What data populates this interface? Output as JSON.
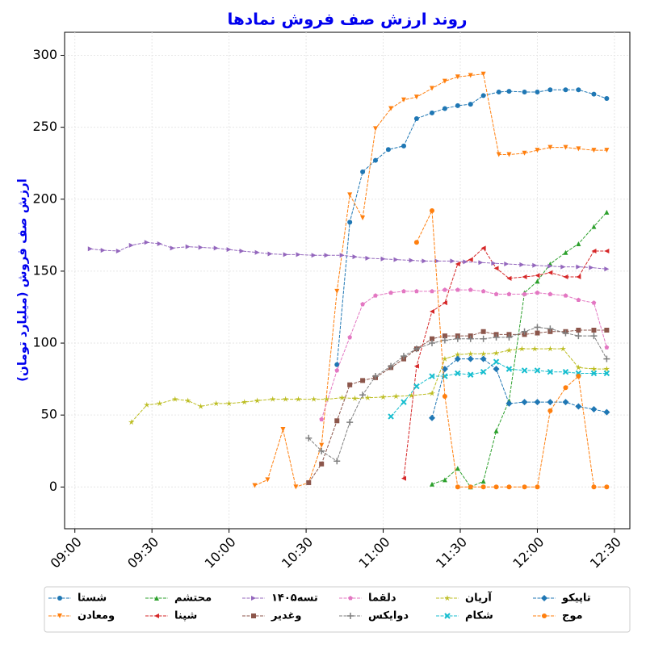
{
  "chart_data": {
    "type": "line",
    "title": "روند ارزش صف فروش نمادها",
    "y_label": "ارزش صف فروش (میلیارد تومان)",
    "xlim": [
      "08:56",
      "12:36"
    ],
    "xticks": [
      "09:00",
      "09:30",
      "10:00",
      "10:30",
      "11:00",
      "11:30",
      "12:00",
      "12:30"
    ],
    "ylim": [
      -29,
      316
    ],
    "yticks": [
      0,
      50,
      100,
      150,
      200,
      250,
      300
    ],
    "grid": true,
    "legend": "lower center",
    "series": [
      {
        "name": "شستا",
        "color": "#1f77b4",
        "marker": "o",
        "x": [
          "10:42",
          "10:47",
          "10:52",
          "10:57",
          "11:02",
          "11:08",
          "11:13",
          "11:19",
          "11:24",
          "11:29",
          "11:34",
          "11:39",
          "11:45",
          "11:49",
          "11:55",
          "12:00",
          "12:05",
          "12:11",
          "12:16",
          "12:22",
          "12:27"
        ],
        "values": [
          85,
          184,
          219,
          227,
          234.5,
          237,
          256,
          260,
          263,
          265,
          266,
          272,
          274.5,
          275,
          274.5,
          274.5,
          276,
          276,
          276,
          273,
          270
        ]
      },
      {
        "name": "ومعادن",
        "color": "#ff7f0e",
        "marker": "v",
        "x": [
          "10:10",
          "10:15",
          "10:21",
          "10:26",
          "10:31",
          "10:36",
          "10:42",
          "10:47",
          "10:52",
          "10:57",
          "11:03",
          "11:08",
          "11:13",
          "11:19",
          "11:24",
          "11:29",
          "11:34",
          "11:39",
          "11:45",
          "11:49",
          "11:55",
          "12:00",
          "12:05",
          "12:11",
          "12:16",
          "12:22",
          "12:27"
        ],
        "values": [
          1,
          5,
          40,
          0,
          3,
          29,
          136,
          203,
          187,
          249,
          263,
          269,
          271,
          277,
          282,
          285,
          286,
          287,
          231,
          231,
          232,
          234,
          236,
          236,
          235,
          234,
          234
        ]
      },
      {
        "name": "محتشم",
        "color": "#2ca02c",
        "marker": "^",
        "x": [
          "11:19",
          "11:24",
          "11:29",
          "11:34",
          "11:39",
          "11:44",
          "11:49",
          "11:55",
          "12:00",
          "12:05",
          "12:11",
          "12:16",
          "12:22",
          "12:27"
        ],
        "values": [
          2,
          5,
          13,
          0,
          4,
          39,
          60,
          135,
          143,
          155,
          163,
          169,
          181,
          191
        ]
      },
      {
        "name": "شپنا",
        "color": "#d62728",
        "marker": "<",
        "x": [
          "11:08",
          "11:13",
          "11:19",
          "11:24",
          "11:29",
          "11:34",
          "11:39",
          "11:44",
          "11:49",
          "11:55",
          "12:00",
          "12:05",
          "12:11",
          "12:16",
          "12:22",
          "12:27"
        ],
        "values": [
          6,
          84,
          122,
          128,
          155,
          158,
          166,
          152,
          145,
          146,
          147,
          149,
          146,
          146,
          164,
          164
        ]
      },
      {
        "name": "تسه۱۴۰۵",
        "color": "#9467bd",
        "marker": ">",
        "x": [
          "09:06",
          "09:11",
          "09:17",
          "09:22",
          "09:28",
          "09:33",
          "09:38",
          "09:44",
          "09:49",
          "09:55",
          "10:00",
          "10:05",
          "10:11",
          "10:16",
          "10:22",
          "10:27",
          "10:33",
          "10:38",
          "10:44",
          "10:49",
          "10:54",
          "11:00",
          "11:05",
          "11:11",
          "11:16",
          "11:21",
          "11:27",
          "11:32",
          "11:38",
          "11:43",
          "11:48",
          "11:54",
          "11:59",
          "12:05",
          "12:10",
          "12:16",
          "12:21",
          "12:27"
        ],
        "values": [
          165.5,
          164.5,
          164,
          168,
          170,
          169,
          166,
          167,
          166.5,
          166,
          165,
          164,
          163,
          162,
          161.5,
          161.5,
          161,
          161,
          161,
          160,
          159,
          158.5,
          158,
          157.5,
          157,
          157,
          157,
          156.5,
          156,
          155.5,
          155,
          154.5,
          154,
          153.5,
          153,
          153,
          152.5,
          151.5
        ]
      },
      {
        "name": "وغدیر",
        "color": "#8c564b",
        "marker": "s",
        "x": [
          "10:31",
          "10:36",
          "10:42",
          "10:47",
          "10:52",
          "10:57",
          "11:03",
          "11:08",
          "11:13",
          "11:19",
          "11:24",
          "11:29",
          "11:34",
          "11:39",
          "11:44",
          "11:49",
          "11:55",
          "12:00",
          "12:05",
          "12:11",
          "12:16",
          "12:22",
          "12:27"
        ],
        "values": [
          3,
          16,
          46,
          71,
          74,
          76,
          83,
          89,
          96,
          103,
          105,
          105,
          105,
          108,
          106,
          106,
          106,
          107,
          108,
          108,
          109,
          109,
          109
        ]
      },
      {
        "name": "دلقما",
        "color": "#e377c2",
        "marker": "p",
        "x": [
          "10:36",
          "10:42",
          "10:47",
          "10:52",
          "10:57",
          "11:03",
          "11:08",
          "11:13",
          "11:19",
          "11:24",
          "11:29",
          "11:34",
          "11:39",
          "11:44",
          "11:49",
          "11:55",
          "12:00",
          "12:05",
          "12:11",
          "12:16",
          "12:22",
          "12:27"
        ],
        "values": [
          47,
          81,
          104,
          127,
          133,
          135,
          136,
          136,
          136,
          137,
          137,
          137,
          136,
          134,
          134,
          134,
          135,
          134,
          133,
          130,
          128,
          97
        ]
      },
      {
        "name": "دوایکس",
        "color": "#7f7f7f",
        "marker": "+",
        "x": [
          "10:31",
          "10:36",
          "10:42",
          "10:47",
          "10:52",
          "10:57",
          "11:03",
          "11:08",
          "11:13",
          "11:19",
          "11:24",
          "11:29",
          "11:34",
          "11:39",
          "11:44",
          "11:49",
          "11:55",
          "12:00",
          "12:05",
          "12:11",
          "12:16",
          "12:22",
          "12:27"
        ],
        "values": [
          34,
          25,
          18,
          45,
          64,
          77,
          84,
          91,
          96,
          100,
          102,
          103,
          103,
          103,
          104,
          104,
          108,
          111,
          110,
          107,
          105,
          105,
          89
        ]
      },
      {
        "name": "آریان",
        "color": "#bcbd22",
        "marker": "*",
        "x": [
          "09:22",
          "09:28",
          "09:33",
          "09:39",
          "09:44",
          "09:49",
          "09:55",
          "10:00",
          "10:06",
          "10:11",
          "10:17",
          "10:22",
          "10:27",
          "10:33",
          "10:38",
          "10:44",
          "10:49",
          "10:54",
          "11:00",
          "11:05",
          "11:11",
          "11:19",
          "11:24",
          "11:29",
          "11:34",
          "11:39",
          "11:44",
          "11:49",
          "11:54",
          "11:59",
          "12:05",
          "12:10",
          "12:16",
          "12:22",
          "12:27"
        ],
        "values": [
          45,
          57,
          58,
          61,
          60,
          56,
          58,
          58,
          59,
          60,
          61,
          61,
          61,
          61,
          61,
          62,
          61.5,
          62,
          62.5,
          63,
          63.5,
          65,
          89,
          92,
          92.5,
          92.5,
          93,
          95,
          96,
          96,
          96,
          96,
          83,
          82,
          82
        ]
      },
      {
        "name": "شکام",
        "color": "#17becf",
        "marker": "x",
        "x": [
          "11:03",
          "11:08",
          "11:13",
          "11:19",
          "11:24",
          "11:29",
          "11:34",
          "11:39",
          "11:44",
          "11:49",
          "11:55",
          "12:00",
          "12:05",
          "12:11",
          "12:16",
          "12:22",
          "12:27"
        ],
        "values": [
          49,
          59,
          70,
          77,
          77,
          79,
          78,
          80,
          87,
          82,
          81,
          81,
          80,
          80,
          79,
          79,
          79
        ]
      },
      {
        "name": "تاپیکو",
        "color": "#1f77b4",
        "marker": "D",
        "x": [
          "11:19",
          "11:24",
          "11:29",
          "11:34",
          "11:39",
          "11:44",
          "11:49",
          "11:55",
          "12:00",
          "12:05",
          "12:11",
          "12:16",
          "12:22",
          "12:27"
        ],
        "values": [
          48,
          82,
          89,
          89,
          89,
          82,
          58,
          59,
          59,
          59,
          59,
          56,
          54,
          52
        ]
      },
      {
        "name": "موج",
        "color": "#ff7f0e",
        "marker": "o",
        "x": [
          "11:13",
          "11:19",
          "11:24",
          "11:29",
          "11:34",
          "11:39",
          "11:44",
          "11:49",
          "11:55",
          "12:00",
          "12:05",
          "12:11",
          "12:16",
          "12:22",
          "12:27"
        ],
        "values": [
          170,
          192,
          63,
          0,
          0,
          0,
          0,
          0,
          0,
          0,
          53,
          69,
          77,
          0,
          0
        ]
      }
    ]
  }
}
